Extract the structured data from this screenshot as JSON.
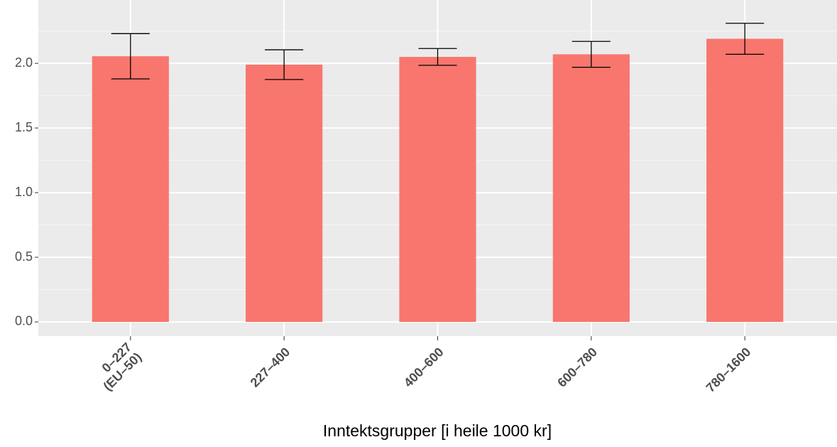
{
  "chart_data": {
    "type": "bar",
    "categories": [
      "0–227\n(EU–50)",
      "227–400",
      "400–600",
      "600–780",
      "780–1600"
    ],
    "values": [
      2.055,
      1.99,
      2.05,
      2.07,
      2.19
    ],
    "errors": [
      0.175,
      0.115,
      0.065,
      0.1,
      0.12
    ],
    "color": "#f8766d",
    "x_label": "Inntektsgrupper [i heile 1000 kr]",
    "ylim": [
      -0.11,
      2.49
    ],
    "yticks": [
      {
        "value": 0,
        "label": "0.0"
      },
      {
        "value": 0.5,
        "label": "0.5"
      },
      {
        "value": 1,
        "label": "1.0"
      },
      {
        "value": 1.5,
        "label": "1.5"
      },
      {
        "value": 2,
        "label": "2.0"
      }
    ],
    "grid": true
  }
}
